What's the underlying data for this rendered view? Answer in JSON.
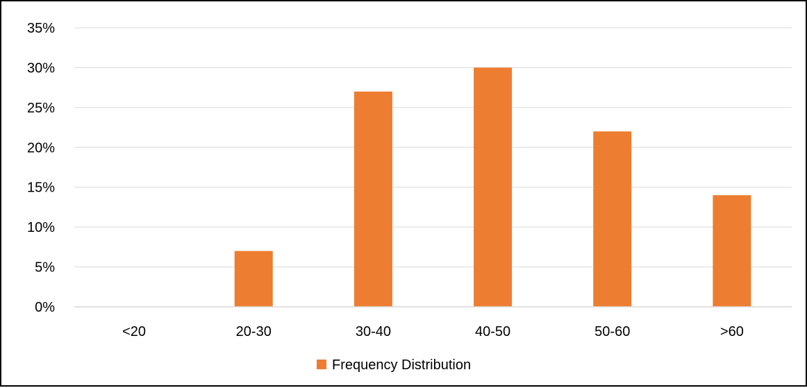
{
  "chart_data": {
    "type": "bar",
    "categories": [
      "<20",
      "20-30",
      "30-40",
      "40-50",
      "50-60",
      ">60"
    ],
    "series": [
      {
        "name": "Frequency Distribution",
        "values": [
          0,
          7,
          27,
          30,
          22,
          14
        ],
        "color": "#ED7D31"
      }
    ],
    "ylim": [
      0,
      35
    ],
    "yticks": [
      "0%",
      "5%",
      "10%",
      "15%",
      "20%",
      "25%",
      "30%",
      "35%"
    ],
    "ytick_values": [
      0,
      5,
      10,
      15,
      20,
      25,
      30,
      35
    ],
    "value_format": "percent",
    "grid": true,
    "gridline_color": "#D9D9D9",
    "legend_position": "bottom",
    "title": "",
    "xlabel": "",
    "ylabel": ""
  }
}
